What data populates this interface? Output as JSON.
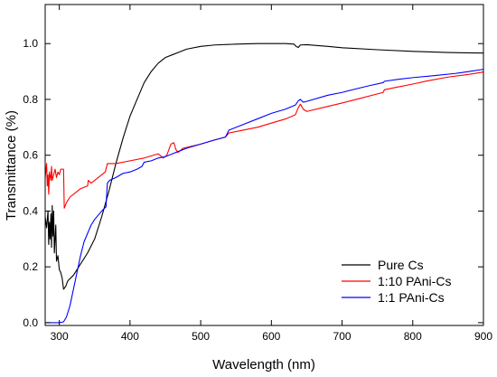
{
  "chart_data": {
    "type": "line",
    "xlabel": "Wavelength (nm)",
    "ylabel": "Transmittance (%)",
    "xlim": [
      280,
      900
    ],
    "ylim": [
      -0.01,
      1.14
    ],
    "xticks": [
      300,
      400,
      500,
      600,
      700,
      800,
      900
    ],
    "yticks": [
      0.0,
      0.2,
      0.4,
      0.6,
      0.8,
      1.0
    ],
    "xtick_labels": [
      "300",
      "400",
      "500",
      "600",
      "700",
      "800",
      "900"
    ],
    "ytick_labels": [
      "0.0",
      "0.2",
      "0.4",
      "0.6",
      "0.8",
      "1.0"
    ],
    "grid": false,
    "legend_position": "bottom-right",
    "series": [
      {
        "name": "Pure Cs",
        "color": "#000000",
        "points": [
          [
            280,
            0.38
          ],
          [
            282,
            0.34
          ],
          [
            284,
            0.4
          ],
          [
            285,
            0.28
          ],
          [
            286,
            0.36
          ],
          [
            287,
            0.3
          ],
          [
            288,
            0.39
          ],
          [
            289,
            0.27
          ],
          [
            290,
            0.42
          ],
          [
            291,
            0.31
          ],
          [
            292,
            0.4
          ],
          [
            293,
            0.25
          ],
          [
            295,
            0.35
          ],
          [
            296,
            0.22
          ],
          [
            298,
            0.24
          ],
          [
            300,
            0.19
          ],
          [
            302,
            0.18
          ],
          [
            304,
            0.16
          ],
          [
            306,
            0.12
          ],
          [
            309,
            0.13
          ],
          [
            312,
            0.15
          ],
          [
            320,
            0.17
          ],
          [
            330,
            0.21
          ],
          [
            340,
            0.25
          ],
          [
            350,
            0.3
          ],
          [
            360,
            0.38
          ],
          [
            370,
            0.47
          ],
          [
            380,
            0.57
          ],
          [
            390,
            0.66
          ],
          [
            400,
            0.74
          ],
          [
            410,
            0.8
          ],
          [
            420,
            0.86
          ],
          [
            430,
            0.9
          ],
          [
            440,
            0.93
          ],
          [
            450,
            0.95
          ],
          [
            460,
            0.96
          ],
          [
            470,
            0.97
          ],
          [
            480,
            0.98
          ],
          [
            500,
            0.99
          ],
          [
            520,
            0.995
          ],
          [
            550,
            0.998
          ],
          [
            580,
            1.0
          ],
          [
            600,
            1.0
          ],
          [
            620,
            1.0
          ],
          [
            632,
            0.998
          ],
          [
            635,
            0.99
          ],
          [
            638,
            0.986
          ],
          [
            641,
            0.995
          ],
          [
            650,
            0.996
          ],
          [
            680,
            0.99
          ],
          [
            700,
            0.985
          ],
          [
            750,
            0.978
          ],
          [
            800,
            0.972
          ],
          [
            850,
            0.968
          ],
          [
            900,
            0.966
          ]
        ]
      },
      {
        "name": "1:10 PAni-Cs",
        "color": "#ff0000",
        "points": [
          [
            280,
            0.52
          ],
          [
            282,
            0.57
          ],
          [
            283,
            0.49
          ],
          [
            284,
            0.53
          ],
          [
            285,
            0.46
          ],
          [
            286,
            0.54
          ],
          [
            288,
            0.51
          ],
          [
            289,
            0.56
          ],
          [
            290,
            0.51
          ],
          [
            292,
            0.53
          ],
          [
            294,
            0.55
          ],
          [
            296,
            0.52
          ],
          [
            298,
            0.54
          ],
          [
            300,
            0.53
          ],
          [
            302,
            0.55
          ],
          [
            304,
            0.55
          ],
          [
            306,
            0.55
          ],
          [
            307,
            0.41
          ],
          [
            310,
            0.43
          ],
          [
            315,
            0.45
          ],
          [
            320,
            0.46
          ],
          [
            330,
            0.48
          ],
          [
            340,
            0.49
          ],
          [
            341,
            0.51
          ],
          [
            345,
            0.5
          ],
          [
            355,
            0.52
          ],
          [
            365,
            0.54
          ],
          [
            368,
            0.57
          ],
          [
            380,
            0.57
          ],
          [
            400,
            0.58
          ],
          [
            420,
            0.59
          ],
          [
            440,
            0.605
          ],
          [
            447,
            0.59
          ],
          [
            452,
            0.6
          ],
          [
            458,
            0.64
          ],
          [
            462,
            0.645
          ],
          [
            465,
            0.62
          ],
          [
            468,
            0.61
          ],
          [
            475,
            0.625
          ],
          [
            500,
            0.64
          ],
          [
            520,
            0.655
          ],
          [
            535,
            0.665
          ],
          [
            540,
            0.68
          ],
          [
            560,
            0.69
          ],
          [
            580,
            0.7
          ],
          [
            600,
            0.715
          ],
          [
            620,
            0.73
          ],
          [
            634,
            0.745
          ],
          [
            638,
            0.77
          ],
          [
            641,
            0.783
          ],
          [
            645,
            0.765
          ],
          [
            650,
            0.757
          ],
          [
            680,
            0.775
          ],
          [
            700,
            0.787
          ],
          [
            720,
            0.8
          ],
          [
            758,
            0.825
          ],
          [
            760,
            0.835
          ],
          [
            780,
            0.845
          ],
          [
            800,
            0.855
          ],
          [
            820,
            0.866
          ],
          [
            850,
            0.88
          ],
          [
            880,
            0.89
          ],
          [
            900,
            0.898
          ]
        ]
      },
      {
        "name": "1:1 PAni-Cs",
        "color": "#0000ff",
        "points": [
          [
            280,
            0.0
          ],
          [
            300,
            0.0
          ],
          [
            306,
            0.003
          ],
          [
            310,
            0.02
          ],
          [
            315,
            0.06
          ],
          [
            320,
            0.12
          ],
          [
            325,
            0.18
          ],
          [
            330,
            0.24
          ],
          [
            335,
            0.29
          ],
          [
            340,
            0.32
          ],
          [
            345,
            0.35
          ],
          [
            350,
            0.37
          ],
          [
            355,
            0.385
          ],
          [
            360,
            0.4
          ],
          [
            366,
            0.415
          ],
          [
            368,
            0.5
          ],
          [
            371,
            0.51
          ],
          [
            380,
            0.52
          ],
          [
            390,
            0.535
          ],
          [
            400,
            0.54
          ],
          [
            410,
            0.55
          ],
          [
            417,
            0.56
          ],
          [
            420,
            0.575
          ],
          [
            430,
            0.58
          ],
          [
            440,
            0.59
          ],
          [
            450,
            0.595
          ],
          [
            460,
            0.605
          ],
          [
            470,
            0.615
          ],
          [
            480,
            0.625
          ],
          [
            500,
            0.64
          ],
          [
            520,
            0.655
          ],
          [
            535,
            0.665
          ],
          [
            540,
            0.69
          ],
          [
            560,
            0.71
          ],
          [
            580,
            0.73
          ],
          [
            600,
            0.75
          ],
          [
            620,
            0.765
          ],
          [
            634,
            0.78
          ],
          [
            638,
            0.795
          ],
          [
            641,
            0.8
          ],
          [
            645,
            0.79
          ],
          [
            650,
            0.793
          ],
          [
            680,
            0.815
          ],
          [
            700,
            0.825
          ],
          [
            720,
            0.838
          ],
          [
            740,
            0.85
          ],
          [
            758,
            0.86
          ],
          [
            760,
            0.865
          ],
          [
            780,
            0.872
          ],
          [
            800,
            0.878
          ],
          [
            830,
            0.885
          ],
          [
            860,
            0.893
          ],
          [
            880,
            0.9
          ],
          [
            900,
            0.908
          ]
        ]
      }
    ]
  }
}
